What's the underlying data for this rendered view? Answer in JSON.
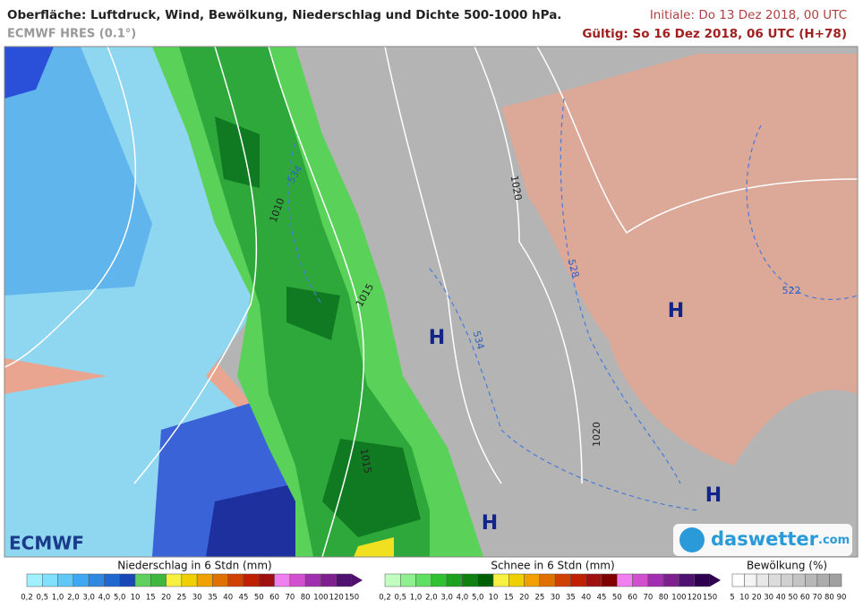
{
  "header": {
    "title": "Oberfläche: Luftdruck, Wind, Bewölkung, Niederschlag und Dichte 500-1000 hPa.",
    "model": "ECMWF HRES (0.1°)",
    "init": "Initiale: Do 13 Dez 2018, 00 UTC",
    "valid": "Gültig: So 16 Dez 2018, 06 UTC (H+78)"
  },
  "map": {
    "labels": [
      "1010",
      "1015",
      "1015",
      "1020",
      "1020",
      "534",
      "534",
      "528",
      "522",
      "H",
      "H",
      "H",
      "H"
    ],
    "logo_left": "ECMWF",
    "logo_right": "daswetter",
    "logo_right_suffix": ".com"
  },
  "legends": [
    {
      "title": "Niederschlag in 6 Stdn (mm)",
      "ticks": [
        "0,2",
        "0,5",
        "1,0",
        "2,0",
        "3,0",
        "4,0",
        "5,0",
        "10",
        "15",
        "20",
        "25",
        "30",
        "35",
        "40",
        "45",
        "50",
        "60",
        "70",
        "80",
        "100",
        "120",
        "150"
      ]
    },
    {
      "title": "Schnee in 6 Stdn (mm)",
      "ticks": [
        "0,2",
        "0,5",
        "1,0",
        "2,0",
        "3,0",
        "4,0",
        "5,0",
        "10",
        "15",
        "20",
        "25",
        "30",
        "35",
        "40",
        "45",
        "50",
        "60",
        "70",
        "80",
        "100",
        "120",
        "150"
      ]
    },
    {
      "title": "Bewölkung (%)",
      "ticks": [
        "5",
        "10",
        "20",
        "30",
        "40",
        "50",
        "60",
        "70",
        "80",
        "90"
      ]
    }
  ]
}
